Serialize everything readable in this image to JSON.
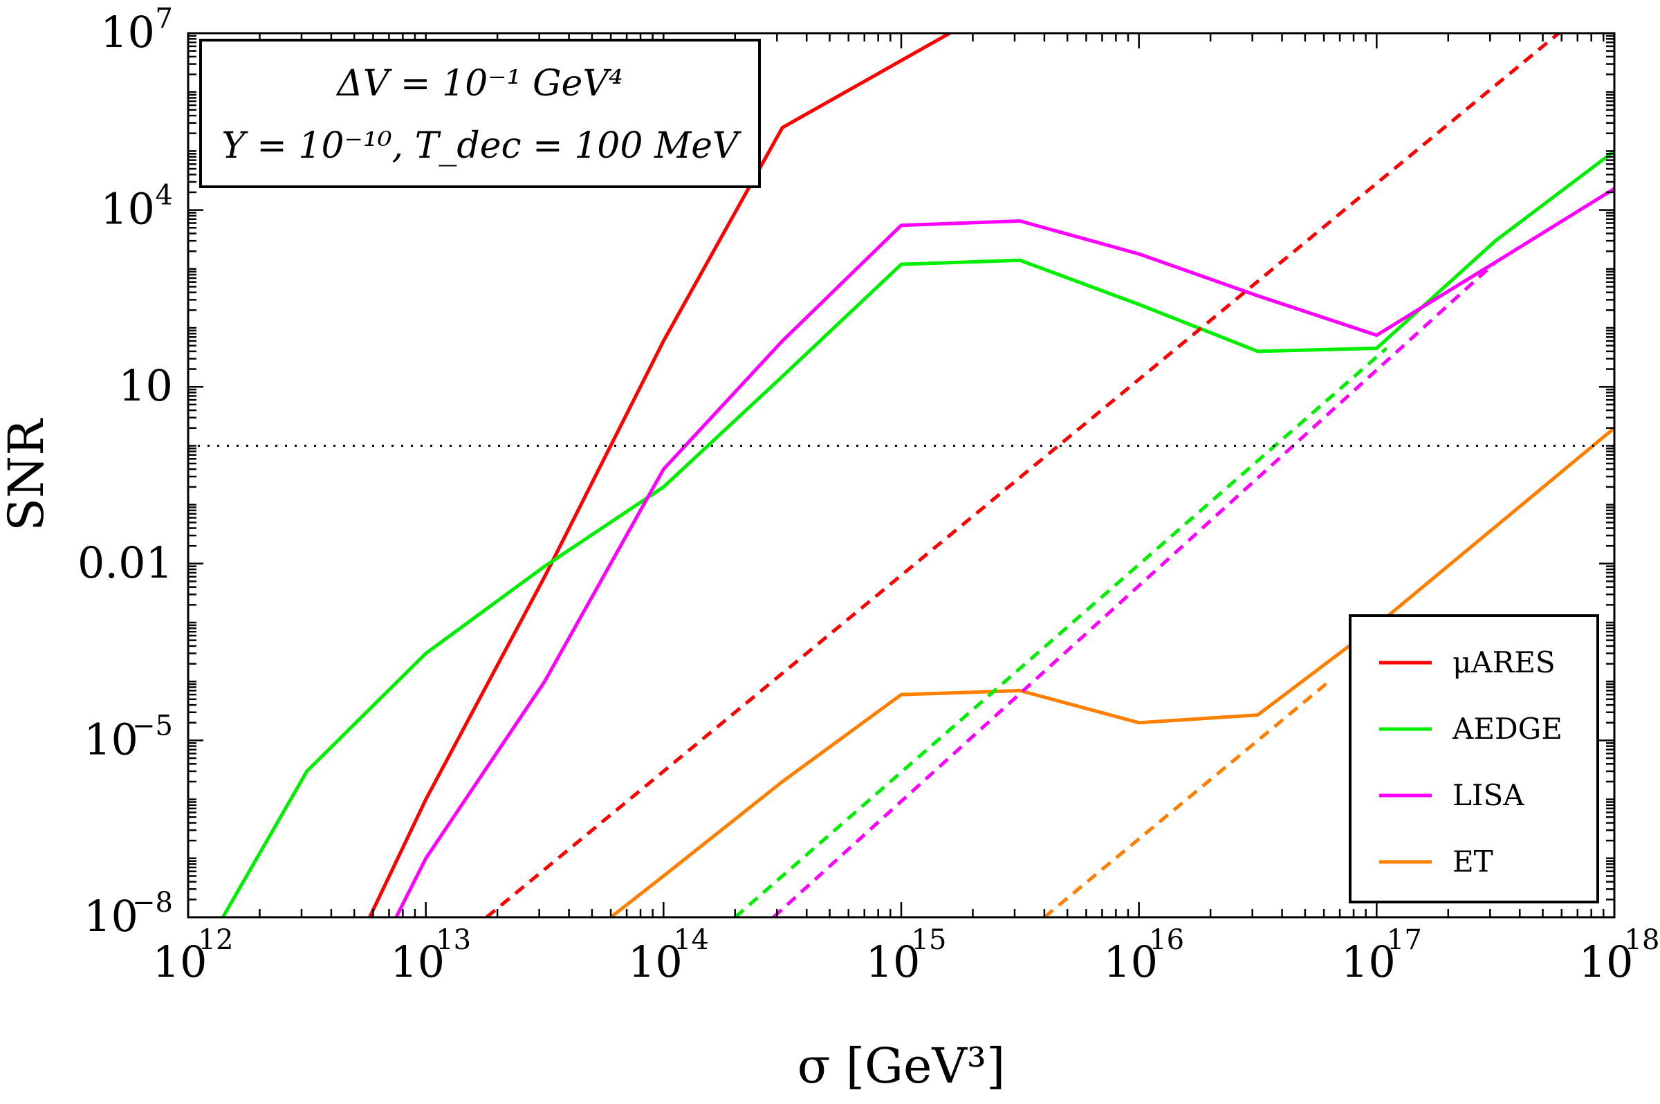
{
  "chart_data": {
    "type": "line",
    "xlabel": "σ [GeV³]",
    "ylabel": "SNR",
    "x_scale": "log",
    "y_scale": "log",
    "xlim": [
      1000000000000.0,
      1e+18
    ],
    "ylim": [
      1e-08,
      10000000.0
    ],
    "x_ticks": [
      {
        "value": 1000000000000.0,
        "mantissa": "10",
        "exp": "12"
      },
      {
        "value": 10000000000000.0,
        "mantissa": "10",
        "exp": "13"
      },
      {
        "value": 100000000000000.0,
        "mantissa": "10",
        "exp": "14"
      },
      {
        "value": 1000000000000000.0,
        "mantissa": "10",
        "exp": "15"
      },
      {
        "value": 1e+16,
        "mantissa": "10",
        "exp": "16"
      },
      {
        "value": 1e+17,
        "mantissa": "10",
        "exp": "17"
      },
      {
        "value": 1e+18,
        "mantissa": "10",
        "exp": "18"
      }
    ],
    "y_ticks": [
      {
        "value": 1e-08,
        "mantissa": "10",
        "exp": "−8"
      },
      {
        "value": 1e-05,
        "mantissa": "10",
        "exp": "−5"
      },
      {
        "value": 0.01,
        "mantissa": "0.01",
        "exp": ""
      },
      {
        "value": 10,
        "mantissa": "10",
        "exp": ""
      },
      {
        "value": 10000.0,
        "mantissa": "10",
        "exp": "4"
      },
      {
        "value": 10000000.0,
        "mantissa": "10",
        "exp": "7"
      }
    ],
    "threshold_line": {
      "y": 1,
      "style": "dotted"
    },
    "annotation": {
      "line1": "ΔV = 10⁻¹ GeV⁴",
      "line2": "Y = 10⁻¹⁰, T_dec = 100 MeV"
    },
    "legend_position": "bottom-right",
    "series": [
      {
        "name": "μARES",
        "color": "#ff0000",
        "style": "solid",
        "points": [
          [
            5800000000000.0,
            1e-08
          ],
          [
            10000000000000.0,
            1e-06
          ],
          [
            31600000000000.0,
            0.006
          ],
          [
            100000000000000.0,
            60
          ],
          [
            316000000000000.0,
            250000.0
          ],
          [
            1600000000000000.0,
            10000000.0
          ]
        ]
      },
      {
        "name": "AEDGE",
        "color": "#00ee00",
        "style": "solid",
        "points": [
          [
            1400000000000.0,
            1e-08
          ],
          [
            3160000000000.0,
            3e-06
          ],
          [
            10000000000000.0,
            0.0003
          ],
          [
            31600000000000.0,
            0.009
          ],
          [
            100000000000000.0,
            0.2
          ],
          [
            316000000000000.0,
            15
          ],
          [
            1000000000000000.0,
            1200
          ],
          [
            3160000000000000.0,
            1400
          ],
          [
            1e+16,
            250
          ],
          [
            3.16e+16,
            40
          ],
          [
            1e+17,
            45
          ],
          [
            3.16e+17,
            3000
          ],
          [
            1e+18,
            100000.0
          ]
        ]
      },
      {
        "name": "LISA",
        "color": "#ff00ff",
        "style": "solid",
        "points": [
          [
            7500000000000.0,
            1e-08
          ],
          [
            10000000000000.0,
            1e-07
          ],
          [
            31600000000000.0,
            0.0001
          ],
          [
            100000000000000.0,
            0.4
          ],
          [
            316000000000000.0,
            60
          ],
          [
            1000000000000000.0,
            5500
          ],
          [
            3160000000000000.0,
            6500
          ],
          [
            1e+16,
            1800
          ],
          [
            3.16e+16,
            350
          ],
          [
            1e+17,
            75
          ],
          [
            3.16e+17,
            1300
          ],
          [
            1e+18,
            23000.0
          ]
        ]
      },
      {
        "name": "ET",
        "color": "#ff8000",
        "style": "solid",
        "points": [
          [
            60000000000000.0,
            1e-08
          ],
          [
            100000000000000.0,
            5e-08
          ],
          [
            316000000000000.0,
            2e-06
          ],
          [
            1000000000000000.0,
            6e-05
          ],
          [
            3160000000000000.0,
            7e-05
          ],
          [
            1e+16,
            2e-05
          ],
          [
            3.16e+16,
            2.7e-05
          ],
          [
            1e+17,
            0.0009
          ],
          [
            1e+18,
            2
          ]
        ]
      },
      {
        "name": "",
        "color": "#ff0000",
        "style": "dashed",
        "points": [
          [
            18000000000000.0,
            1e-08
          ],
          [
            1e+18,
            60000000.0
          ]
        ]
      },
      {
        "name": "",
        "color": "#00ee00",
        "style": "dashed",
        "points": [
          [
            200000000000000.0,
            1e-08
          ],
          [
            1.1e+17,
            45
          ]
        ]
      },
      {
        "name": "",
        "color": "#ff00ff",
        "style": "dashed",
        "points": [
          [
            290000000000000.0,
            1e-08
          ],
          [
            3.16e+17,
            1300
          ]
        ]
      },
      {
        "name": "",
        "color": "#ff8000",
        "style": "dashed",
        "points": [
          [
            4000000000000000.0,
            1e-08
          ],
          [
            6.3e+16,
            0.0001
          ]
        ]
      }
    ]
  }
}
